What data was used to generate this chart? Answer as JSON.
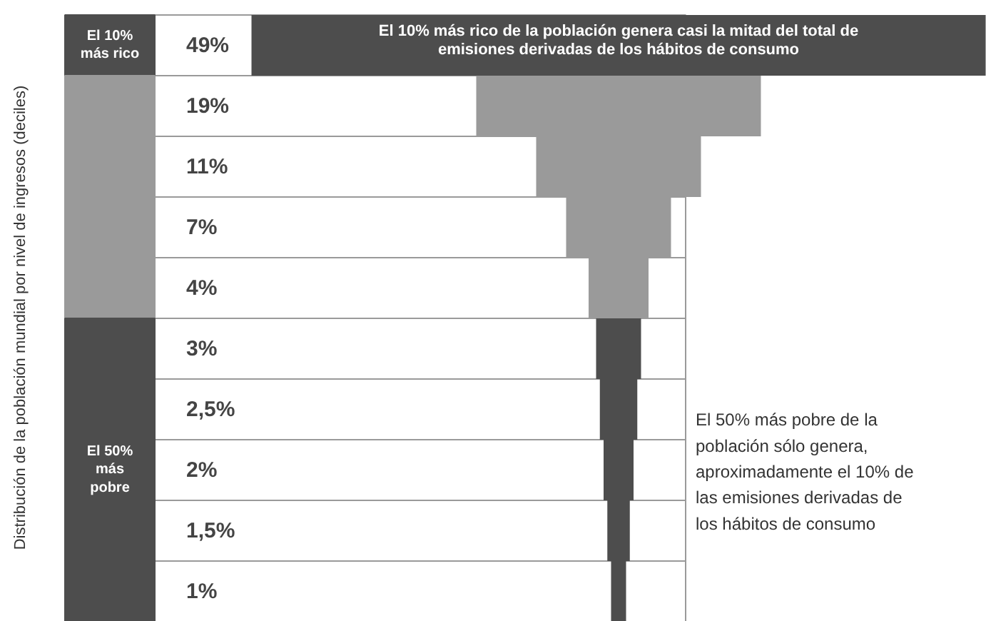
{
  "chart_data": {
    "type": "other",
    "ylabel": "Distribución de la población mundial por nivel de ingresos (deciles)",
    "categories": [
      null,
      null,
      null,
      null,
      null,
      null,
      null,
      null,
      null,
      null
    ],
    "values": [
      49,
      19,
      11,
      7,
      4,
      3,
      2.5,
      2,
      1.5,
      1
    ],
    "value_labels": [
      "49%",
      "19%",
      "11%",
      "7%",
      "4%",
      "3%",
      "2,5%",
      "2%",
      "1,5%",
      "1%"
    ],
    "colors": [
      "#4d4d4d",
      "#9a9a9a",
      "#9a9a9a",
      "#9a9a9a",
      "#9a9a9a",
      "#4d4d4d",
      "#4d4d4d",
      "#4d4d4d",
      "#4d4d4d",
      "#4d4d4d"
    ],
    "annotations": [
      "El 10% más rico de la población genera casi la mitad del total de emisiones derivadas de los hábitos de consumo",
      "El 50% más pobre de la población sólo genera, aproximadamente el 10% de las emisiones derivadas de los hábitos de consumo",
      "El 10% más rico",
      "El 50% más pobre"
    ]
  }
}
